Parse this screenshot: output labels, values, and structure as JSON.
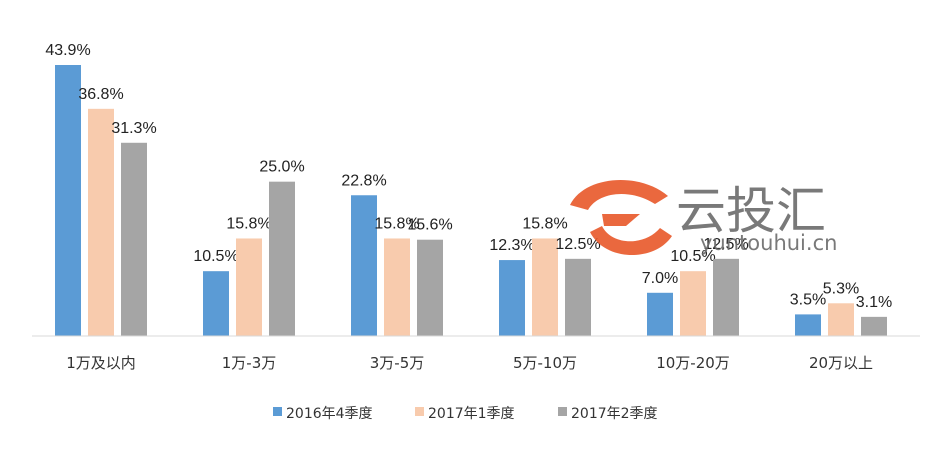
{
  "chart_data": {
    "type": "bar",
    "categories": [
      "1万及以内",
      "1万-3万",
      "3万-5万",
      "5万-10万",
      "10万-20万",
      "20万以上"
    ],
    "series": [
      {
        "name": "2016年4季度",
        "values": [
          43.9,
          10.5,
          22.8,
          12.3,
          7.0,
          3.5
        ],
        "labels": [
          "43.9%",
          "10.5%",
          "22.8%",
          "12.3%",
          "7.0%",
          "3.5%"
        ],
        "color": "#5b9bd5"
      },
      {
        "name": "2017年1季度",
        "values": [
          36.8,
          15.8,
          15.8,
          15.8,
          10.5,
          5.3
        ],
        "labels": [
          "36.8%",
          "15.8%",
          "15.8%",
          "15.8%",
          "10.5%",
          "5.3%"
        ],
        "color": "#f8cbad"
      },
      {
        "name": "2017年2季度",
        "values": [
          31.3,
          25.0,
          15.6,
          12.5,
          12.5,
          3.1
        ],
        "labels": [
          "31.3%",
          "25.0%",
          "15.6%",
          "12.5%",
          "12.5%",
          "3.1%"
        ],
        "color": "#a5a5a5"
      }
    ],
    "ylim": [
      0,
      45
    ],
    "grid": false,
    "legend_position": "bottom"
  },
  "watermark": {
    "brand": "云投汇",
    "url": "yuntouhui.cn",
    "logo_color": "#e8582a"
  }
}
